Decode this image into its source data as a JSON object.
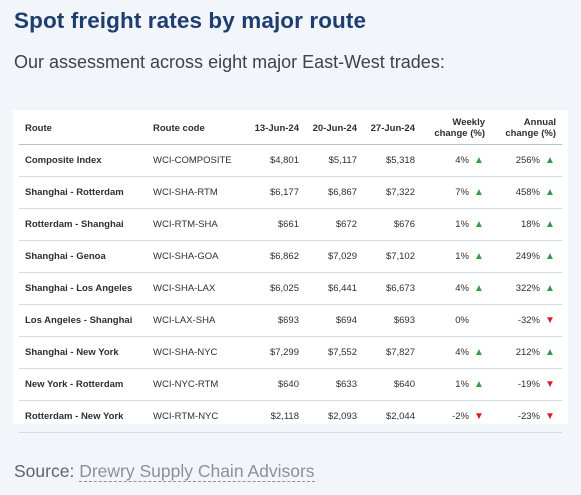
{
  "title": "Spot freight rates by major route",
  "subtitle": "Our assessment across eight major East-West trades:",
  "table": {
    "headers": {
      "route": "Route",
      "code": "Route code",
      "d1": "13-Jun-24",
      "d2": "20-Jun-24",
      "d3": "27-Jun-24",
      "weekly_1": "Weekly",
      "weekly_2": "change (%)",
      "annual_1": "Annual",
      "annual_2": "change (%)"
    },
    "rows": [
      {
        "route": "Composite Index",
        "code": "WCI-COMPOSITE",
        "d1": "$4,801",
        "d2": "$5,117",
        "d3": "$5,318",
        "weekly": "4%",
        "weekly_dir": "up",
        "annual": "256%",
        "annual_dir": "up"
      },
      {
        "route": "Shanghai - Rotterdam",
        "code": "WCI-SHA-RTM",
        "d1": "$6,177",
        "d2": "$6,867",
        "d3": "$7,322",
        "weekly": "7%",
        "weekly_dir": "up",
        "annual": "458%",
        "annual_dir": "up"
      },
      {
        "route": "Rotterdam - Shanghai",
        "code": "WCI-RTM-SHA",
        "d1": "$661",
        "d2": "$672",
        "d3": "$676",
        "weekly": "1%",
        "weekly_dir": "up",
        "annual": "18%",
        "annual_dir": "up"
      },
      {
        "route": "Shanghai - Genoa",
        "code": "WCI-SHA-GOA",
        "d1": "$6,862",
        "d2": "$7,029",
        "d3": "$7,102",
        "weekly": "1%",
        "weekly_dir": "up",
        "annual": "249%",
        "annual_dir": "up"
      },
      {
        "route": "Shanghai - Los Angeles",
        "code": "WCI-SHA-LAX",
        "d1": "$6,025",
        "d2": "$6,441",
        "d3": "$6,673",
        "weekly": "4%",
        "weekly_dir": "up",
        "annual": "322%",
        "annual_dir": "up"
      },
      {
        "route": "Los Angeles - Shanghai",
        "code": "WCI-LAX-SHA",
        "d1": "$693",
        "d2": "$694",
        "d3": "$693",
        "weekly": "0%",
        "weekly_dir": "none",
        "annual": "-32%",
        "annual_dir": "down"
      },
      {
        "route": "Shanghai - New York",
        "code": "WCI-SHA-NYC",
        "d1": "$7,299",
        "d2": "$7,552",
        "d3": "$7,827",
        "weekly": "4%",
        "weekly_dir": "up",
        "annual": "212%",
        "annual_dir": "up"
      },
      {
        "route": "New York - Rotterdam",
        "code": "WCI-NYC-RTM",
        "d1": "$640",
        "d2": "$633",
        "d3": "$640",
        "weekly": "1%",
        "weekly_dir": "up",
        "annual": "-19%",
        "annual_dir": "down"
      },
      {
        "route": "Rotterdam - New York",
        "code": "WCI-RTM-NYC",
        "d1": "$2,118",
        "d2": "$2,093",
        "d3": "$2,044",
        "weekly": "-2%",
        "weekly_dir": "down",
        "annual": "-23%",
        "annual_dir": "down"
      }
    ]
  },
  "source": {
    "label": "Source:",
    "link_text": "Drewry Supply Chain Advisors"
  },
  "colors": {
    "title": "#1d3e6e",
    "up": "#2e9e43",
    "down": "#d81e1e",
    "background": "#f2f5fa"
  },
  "icons": {
    "up": "triangle-up-icon",
    "down": "triangle-down-icon"
  }
}
